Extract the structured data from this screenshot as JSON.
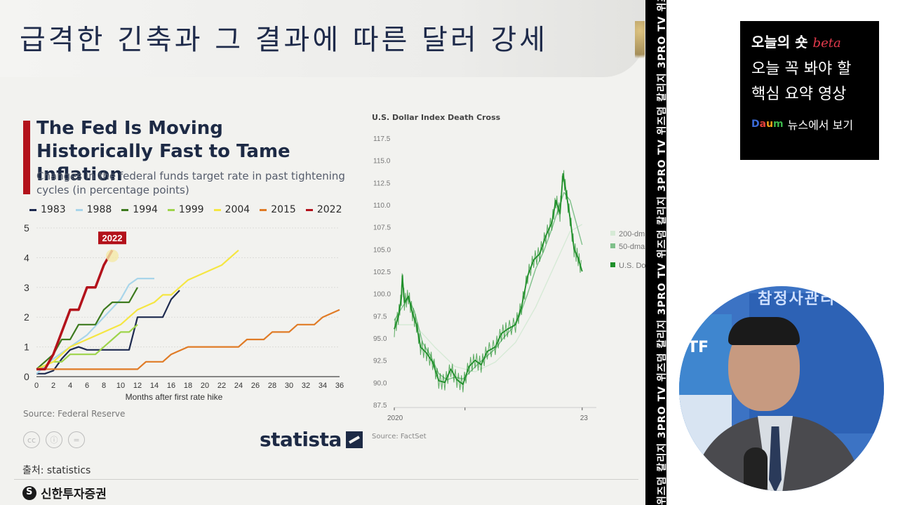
{
  "slide": {
    "title": "급격한 긴축과 그 결과에 따른 달러 강세",
    "footer_source": "출처: statistics",
    "brand": "신한투자증권"
  },
  "left_card": {
    "title": "The Fed Is Moving Historically Fast to Tame Inflation",
    "subtitle": "Changes in the federal funds target rate in past tightening cycles (in percentage points)",
    "source": "Source: Federal Reserve",
    "statista": "statista",
    "cc_icons": [
      "cc-icon",
      "by-icon",
      "nd-icon"
    ],
    "cc_glyphs": [
      "cc",
      "ⓘ",
      "="
    ]
  },
  "chart_data": [
    {
      "type": "line",
      "title": "The Fed Is Moving Historically Fast to Tame Inflation",
      "subtitle": "Changes in the federal funds target rate in past tightening cycles (in percentage points)",
      "xlabel": "Months after first rate hike",
      "ylabel": "",
      "xlim": [
        0,
        36
      ],
      "ylim": [
        0,
        5
      ],
      "x_ticks": [
        0,
        2,
        4,
        6,
        8,
        10,
        12,
        14,
        16,
        18,
        20,
        22,
        24,
        26,
        28,
        30,
        32,
        34,
        36
      ],
      "y_ticks": [
        0,
        1,
        2,
        3,
        4,
        5
      ],
      "grid": true,
      "legend_position": "top",
      "annotation": {
        "text": "2022",
        "x": 9,
        "y": 4.5
      },
      "series": [
        {
          "name": "1983",
          "color": "#1d2a4f",
          "points": [
            [
              0,
              0.1
            ],
            [
              1,
              0.1
            ],
            [
              2,
              0.2
            ],
            [
              3,
              0.6
            ],
            [
              4,
              0.9
            ],
            [
              5,
              1.0
            ],
            [
              6,
              0.9
            ],
            [
              7,
              0.9
            ],
            [
              8,
              0.9
            ],
            [
              9,
              0.9
            ],
            [
              10,
              0.9
            ],
            [
              11,
              0.9
            ],
            [
              12,
              2.0
            ],
            [
              13,
              2.0
            ],
            [
              14,
              2.0
            ],
            [
              15,
              2.0
            ],
            [
              16,
              2.6
            ],
            [
              17,
              2.9
            ]
          ]
        },
        {
          "name": "1988",
          "color": "#a8d5ea",
          "points": [
            [
              0,
              0.1
            ],
            [
              2,
              0.6
            ],
            [
              4,
              1.0
            ],
            [
              6,
              1.4
            ],
            [
              8,
              2.0
            ],
            [
              10,
              2.6
            ],
            [
              11,
              3.1
            ],
            [
              12,
              3.3
            ],
            [
              14,
              3.3
            ]
          ]
        },
        {
          "name": "1994",
          "color": "#3d7a1e",
          "points": [
            [
              0,
              0.25
            ],
            [
              1,
              0.5
            ],
            [
              2,
              0.75
            ],
            [
              3,
              1.25
            ],
            [
              4,
              1.25
            ],
            [
              5,
              1.75
            ],
            [
              6,
              1.75
            ],
            [
              7,
              1.75
            ],
            [
              8,
              2.25
            ],
            [
              9,
              2.5
            ],
            [
              10,
              2.5
            ],
            [
              11,
              2.5
            ],
            [
              12,
              3.0
            ]
          ]
        },
        {
          "name": "1999",
          "color": "#9ed44a",
          "points": [
            [
              0,
              0.25
            ],
            [
              2,
              0.5
            ],
            [
              3,
              0.5
            ],
            [
              4,
              0.75
            ],
            [
              5,
              0.75
            ],
            [
              6,
              0.75
            ],
            [
              7,
              0.75
            ],
            [
              8,
              1.0
            ],
            [
              9,
              1.25
            ],
            [
              10,
              1.5
            ],
            [
              11,
              1.5
            ],
            [
              12,
              1.75
            ]
          ]
        },
        {
          "name": "2004",
          "color": "#f5e642",
          "points": [
            [
              0,
              0.25
            ],
            [
              2,
              0.5
            ],
            [
              4,
              1.0
            ],
            [
              6,
              1.25
            ],
            [
              8,
              1.5
            ],
            [
              10,
              1.75
            ],
            [
              12,
              2.25
            ],
            [
              14,
              2.5
            ],
            [
              15,
              2.75
            ],
            [
              16,
              2.75
            ],
            [
              18,
              3.25
            ],
            [
              20,
              3.5
            ],
            [
              22,
              3.75
            ],
            [
              24,
              4.25
            ]
          ]
        },
        {
          "name": "2015",
          "color": "#e07b26",
          "points": [
            [
              0,
              0.25
            ],
            [
              12,
              0.25
            ],
            [
              13,
              0.5
            ],
            [
              15,
              0.5
            ],
            [
              16,
              0.75
            ],
            [
              18,
              1.0
            ],
            [
              24,
              1.0
            ],
            [
              25,
              1.25
            ],
            [
              27,
              1.25
            ],
            [
              28,
              1.5
            ],
            [
              30,
              1.5
            ],
            [
              31,
              1.75
            ],
            [
              33,
              1.75
            ],
            [
              34,
              2.0
            ],
            [
              36,
              2.25
            ]
          ]
        },
        {
          "name": "2022",
          "color": "#b3121b",
          "points": [
            [
              0,
              0.25
            ],
            [
              1,
              0.25
            ],
            [
              2,
              0.75
            ],
            [
              3,
              1.5
            ],
            [
              4,
              2.25
            ],
            [
              5,
              2.25
            ],
            [
              6,
              3.0
            ],
            [
              7,
              3.0
            ],
            [
              8,
              3.75
            ],
            [
              9,
              4.25
            ]
          ]
        }
      ]
    },
    {
      "type": "line",
      "title": "U.S. Dollar Index Death Cross",
      "source": "Source: FactSet",
      "xlabel": "",
      "ylabel": "",
      "x_labels": [
        "2020",
        "23"
      ],
      "ylim": [
        87.5,
        117.5
      ],
      "y_ticks": [
        87.5,
        90.0,
        92.5,
        95.0,
        97.5,
        100.0,
        102.5,
        105.0,
        107.5,
        110.0,
        112.5,
        115.0,
        117.5
      ],
      "legend_position": "right",
      "legend": [
        "200-dm",
        "50-dma",
        "U.S. Dol"
      ],
      "series": [
        {
          "name": "U.S. Dol",
          "color": "#1f8f2a",
          "points": [
            [
              0,
              96.0
            ],
            [
              0.02,
              97.4
            ],
            [
              0.035,
              99.5
            ],
            [
              0.04,
              102.0
            ],
            [
              0.05,
              99.0
            ],
            [
              0.07,
              99.7
            ],
            [
              0.09,
              97.8
            ],
            [
              0.11,
              96.5
            ],
            [
              0.13,
              94.0
            ],
            [
              0.16,
              93.3
            ],
            [
              0.19,
              92.3
            ],
            [
              0.22,
              90.2
            ],
            [
              0.25,
              90.0
            ],
            [
              0.28,
              91.5
            ],
            [
              0.31,
              90.3
            ],
            [
              0.34,
              89.8
            ],
            [
              0.37,
              91.8
            ],
            [
              0.4,
              92.5
            ],
            [
              0.43,
              92.0
            ],
            [
              0.46,
              93.5
            ],
            [
              0.5,
              94.0
            ],
            [
              0.53,
              95.5
            ],
            [
              0.56,
              96.0
            ],
            [
              0.6,
              96.5
            ],
            [
              0.63,
              98.5
            ],
            [
              0.66,
              102.0
            ],
            [
              0.69,
              103.8
            ],
            [
              0.72,
              104.5
            ],
            [
              0.75,
              106.5
            ],
            [
              0.78,
              108.0
            ],
            [
              0.8,
              110.5
            ],
            [
              0.82,
              109.0
            ],
            [
              0.835,
              113.5
            ],
            [
              0.85,
              111.5
            ],
            [
              0.87,
              108.5
            ],
            [
              0.89,
              105.0
            ],
            [
              0.91,
              104.0
            ],
            [
              0.93,
              102.5
            ]
          ]
        },
        {
          "name": "50-dma",
          "color": "#7fc08a",
          "points": [
            [
              0,
              97.0
            ],
            [
              0.04,
              98.5
            ],
            [
              0.07,
              99.5
            ],
            [
              0.1,
              98.0
            ],
            [
              0.14,
              94.5
            ],
            [
              0.18,
              93.0
            ],
            [
              0.22,
              91.0
            ],
            [
              0.26,
              90.3
            ],
            [
              0.3,
              90.6
            ],
            [
              0.34,
              90.4
            ],
            [
              0.38,
              91.3
            ],
            [
              0.42,
              92.2
            ],
            [
              0.46,
              93.0
            ],
            [
              0.5,
              93.8
            ],
            [
              0.54,
              95.0
            ],
            [
              0.58,
              96.0
            ],
            [
              0.62,
              97.5
            ],
            [
              0.66,
              100.0
            ],
            [
              0.7,
              102.8
            ],
            [
              0.74,
              104.8
            ],
            [
              0.78,
              107.3
            ],
            [
              0.81,
              109.4
            ],
            [
              0.84,
              111.4
            ],
            [
              0.87,
              110.5
            ],
            [
              0.9,
              108.0
            ],
            [
              0.93,
              105.5
            ]
          ]
        },
        {
          "name": "200-dm",
          "color": "#d6ead6",
          "points": [
            [
              0,
              96.5
            ],
            [
              0.1,
              96.5
            ],
            [
              0.2,
              94.0
            ],
            [
              0.3,
              91.8
            ],
            [
              0.4,
              91.2
            ],
            [
              0.5,
              92.3
            ],
            [
              0.6,
              94.5
            ],
            [
              0.7,
              98.5
            ],
            [
              0.8,
              103.5
            ],
            [
              0.87,
              107.0
            ],
            [
              0.93,
              107.8
            ]
          ]
        }
      ]
    }
  ],
  "strip": {
    "text": "위즈덤 칼리지   3PRO TV   위즈덤 칼리지   3PRO TV   위즈덤 칼리지   3PRO TV   위즈덤 칼리지   3PRO TV   위즈덤 칼리지"
  },
  "promo": {
    "head": "오늘의 숏",
    "beta": "beta",
    "line1": "오늘 꼭 봐야 할",
    "line2": "핵심 요약 영상",
    "daum_letters": [
      "D",
      "a",
      "u",
      "m"
    ],
    "foot": "뉴스에서 보기"
  },
  "webcam": {
    "sign_text": "참정사관리",
    "tf_text": "TF"
  }
}
